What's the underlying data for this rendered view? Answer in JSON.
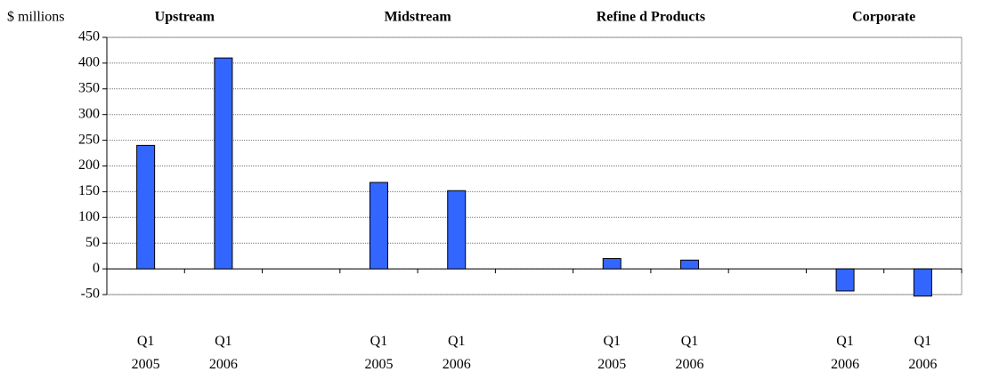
{
  "chart_data": {
    "type": "bar",
    "y_axis_label": "$ millions",
    "groups": [
      "Upstream",
      "Midstream",
      "Refine d Products",
      "Corporate"
    ],
    "categories": [
      [
        "Q1",
        "2005"
      ],
      [
        "Q1",
        "2006"
      ],
      null,
      [
        "Q1",
        "2005"
      ],
      [
        "Q1",
        "2006"
      ],
      null,
      [
        "Q1",
        "2005"
      ],
      [
        "Q1",
        "2006"
      ],
      null,
      [
        "Q1",
        "2006"
      ],
      [
        "Q1",
        "2006"
      ]
    ],
    "values": [
      240,
      410,
      null,
      168,
      152,
      null,
      20,
      17,
      null,
      -43,
      -53
    ],
    "color": "#3366ff",
    "ylim": [
      -50,
      450
    ],
    "yticks": [
      -50,
      0,
      50,
      100,
      150,
      200,
      250,
      300,
      350,
      400,
      450
    ],
    "grid": true
  }
}
